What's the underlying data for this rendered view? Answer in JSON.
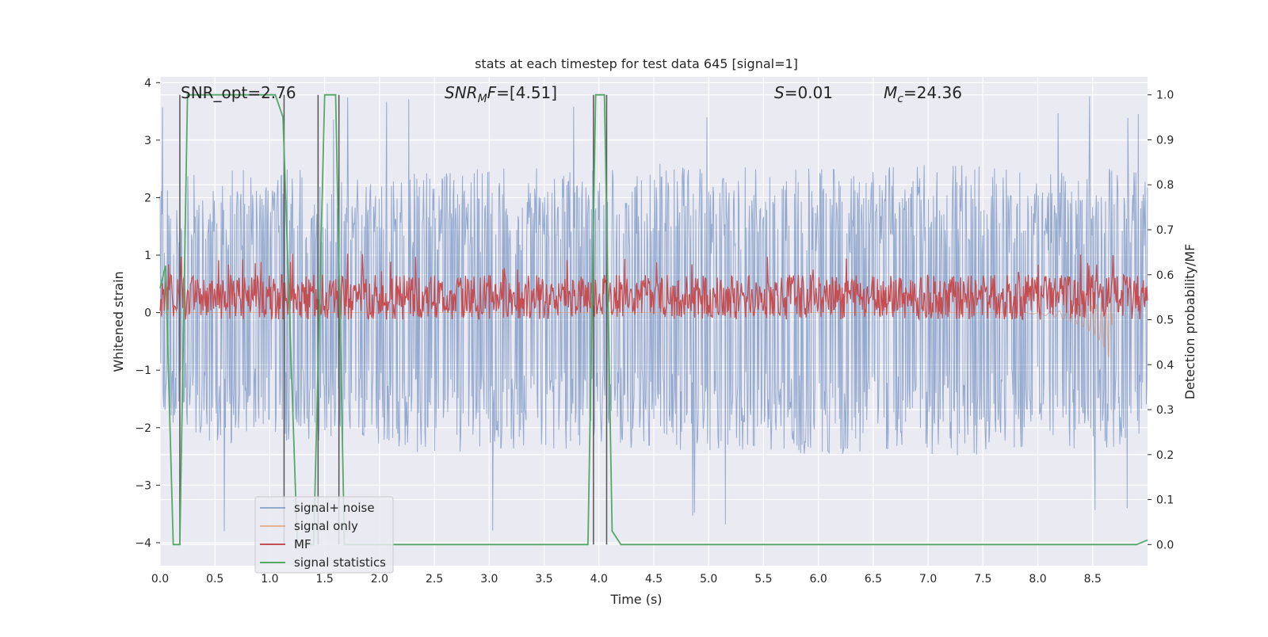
{
  "chart_data": {
    "type": "line",
    "title": "stats at each timestep for test data 645 [signal=1]",
    "xlabel": "Time (s)",
    "ylabel_left": "Whitened strain",
    "ylabel_right": "Detection probability/MF",
    "xlim": [
      0.0,
      9.0
    ],
    "ylim_left": [
      -4.4,
      4.1
    ],
    "ylim_right": [
      -0.047,
      1.04
    ],
    "x_ticks": [
      "0.0",
      "0.5",
      "1.0",
      "1.5",
      "2.0",
      "2.5",
      "3.0",
      "3.5",
      "4.0",
      "4.5",
      "5.0",
      "5.5",
      "6.0",
      "6.5",
      "7.0",
      "7.5",
      "8.0",
      "8.5"
    ],
    "y_left_ticks": [
      "4",
      "3",
      "2",
      "1",
      "0",
      "−1",
      "−2",
      "−3",
      "−4"
    ],
    "y_right_ticks": [
      "1.0",
      "0.9",
      "0.8",
      "0.7",
      "0.6",
      "0.5",
      "0.4",
      "0.3",
      "0.2",
      "0.1",
      "0.0"
    ],
    "grid": true,
    "legend_position": "lower-left",
    "annotations": {
      "snr_opt": "SNR_opt=2.76",
      "snr_mf": "=[4.51]",
      "snr_mf_main": "SNR",
      "snr_mf_sub": "M",
      "snr_mf_tail": "F",
      "s_val": "=0.01",
      "s_sym": "S",
      "mc_val": "=24.36",
      "mc_sym": "M",
      "mc_sub": "c"
    },
    "series": [
      {
        "name": "signal+ noise",
        "axis": "left",
        "color": "#4c72b0",
        "description_values": "band",
        "upper_envelope": [
          [
            0.0,
            2.2
          ],
          [
            0.5,
            2.6
          ],
          [
            1.0,
            2.5
          ],
          [
            1.5,
            2.5
          ],
          [
            2.0,
            2.3
          ],
          [
            2.5,
            2.5
          ],
          [
            3.0,
            2.6
          ],
          [
            3.5,
            2.5
          ],
          [
            4.0,
            2.5
          ],
          [
            4.5,
            2.6
          ],
          [
            5.0,
            2.5
          ],
          [
            5.5,
            2.6
          ],
          [
            6.0,
            2.5
          ],
          [
            6.5,
            2.5
          ],
          [
            7.0,
            2.6
          ],
          [
            7.5,
            2.6
          ],
          [
            8.0,
            2.4
          ],
          [
            8.5,
            2.5
          ],
          [
            9.0,
            2.5
          ]
        ],
        "lower_envelope": [
          [
            0.0,
            -1.8
          ],
          [
            0.5,
            -2.3
          ],
          [
            1.0,
            -2.2
          ],
          [
            1.5,
            -2.3
          ],
          [
            2.0,
            -2.3
          ],
          [
            2.5,
            -2.5
          ],
          [
            3.0,
            -2.4
          ],
          [
            3.5,
            -2.5
          ],
          [
            4.0,
            -2.3
          ],
          [
            4.5,
            -2.4
          ],
          [
            5.0,
            -2.4
          ],
          [
            5.5,
            -2.4
          ],
          [
            6.0,
            -2.5
          ],
          [
            6.5,
            -2.4
          ],
          [
            7.0,
            -2.5
          ],
          [
            7.5,
            -2.5
          ],
          [
            8.0,
            -2.3
          ],
          [
            8.5,
            -2.4
          ],
          [
            9.0,
            -2.3
          ]
        ]
      },
      {
        "name": "signal only",
        "axis": "left",
        "color": "#dd8452",
        "values": [
          [
            0.0,
            0.0
          ],
          [
            7.8,
            0.0
          ],
          [
            8.0,
            -0.02
          ],
          [
            8.2,
            -0.06
          ],
          [
            8.4,
            -0.15
          ],
          [
            8.55,
            -0.3
          ],
          [
            8.62,
            -0.45
          ],
          [
            8.67,
            -0.6
          ],
          [
            8.68,
            0.0
          ]
        ]
      },
      {
        "name": "MF",
        "axis": "right",
        "color": "#c44e52",
        "values_range": [
          0.5,
          0.6
        ]
      },
      {
        "name": "signal statistics",
        "axis": "right",
        "color": "#55a868",
        "values": [
          [
            0.0,
            0.57
          ],
          [
            0.05,
            0.62
          ],
          [
            0.12,
            0.0
          ],
          [
            0.18,
            0.0
          ],
          [
            0.25,
            1.0
          ],
          [
            1.05,
            1.0
          ],
          [
            1.12,
            0.95
          ],
          [
            1.25,
            0.0
          ],
          [
            1.4,
            0.0
          ],
          [
            1.5,
            1.0
          ],
          [
            1.6,
            1.0
          ],
          [
            1.68,
            0.0
          ],
          [
            3.9,
            0.0
          ],
          [
            3.97,
            1.0
          ],
          [
            4.05,
            1.0
          ],
          [
            4.12,
            0.03
          ],
          [
            4.2,
            0.0
          ],
          [
            8.9,
            0.0
          ],
          [
            9.0,
            0.01
          ]
        ]
      }
    ],
    "markers_x": [
      0.18,
      1.13,
      1.44,
      1.63,
      3.95,
      4.07
    ]
  }
}
